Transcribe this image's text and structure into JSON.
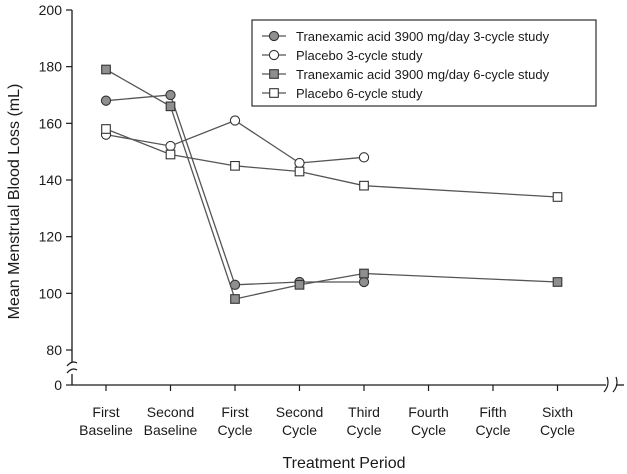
{
  "chart_data": {
    "type": "line",
    "title": "",
    "xlabel": "Treatment Period",
    "ylabel": "Mean Menstrual Blood Loss (mL)",
    "ylim": [
      80,
      200
    ],
    "y_axis_break": true,
    "x_axis_break": true,
    "grid": false,
    "legend_position": "top-right",
    "y_ticks": [
      "0",
      "80",
      "100",
      "120",
      "140",
      "160",
      "180",
      "200"
    ],
    "categories": [
      [
        "First",
        "Baseline"
      ],
      [
        "Second",
        "Baseline"
      ],
      [
        "First",
        "Cycle"
      ],
      [
        "Second",
        "Cycle"
      ],
      [
        "Third",
        "Cycle"
      ],
      [
        "Fourth",
        "Cycle"
      ],
      [
        "Fifth",
        "Cycle"
      ],
      [
        "Sixth",
        "Cycle"
      ]
    ],
    "series": [
      {
        "name": "Tranexamic acid 3900 mg/day 3-cycle study",
        "marker": "circle",
        "fill": "#8f8f8f",
        "values": [
          168,
          170,
          103,
          104,
          104,
          null,
          null,
          null
        ]
      },
      {
        "name": "Placebo 3-cycle study",
        "marker": "circle",
        "fill": "#ffffff",
        "values": [
          156,
          152,
          161,
          146,
          148,
          null,
          null,
          null
        ]
      },
      {
        "name": "Tranexamic acid 3900 mg/day 6-cycle study",
        "marker": "square",
        "fill": "#8f8f8f",
        "values": [
          179,
          166,
          98,
          103,
          107,
          null,
          null,
          104
        ]
      },
      {
        "name": "Placebo 6-cycle study",
        "marker": "square",
        "fill": "#ffffff",
        "values": [
          158,
          149,
          145,
          143,
          138,
          null,
          null,
          134
        ]
      }
    ]
  },
  "colors": {
    "line": "#555555",
    "marker_stroke": "#333333",
    "axis": "#1a1a1a"
  }
}
